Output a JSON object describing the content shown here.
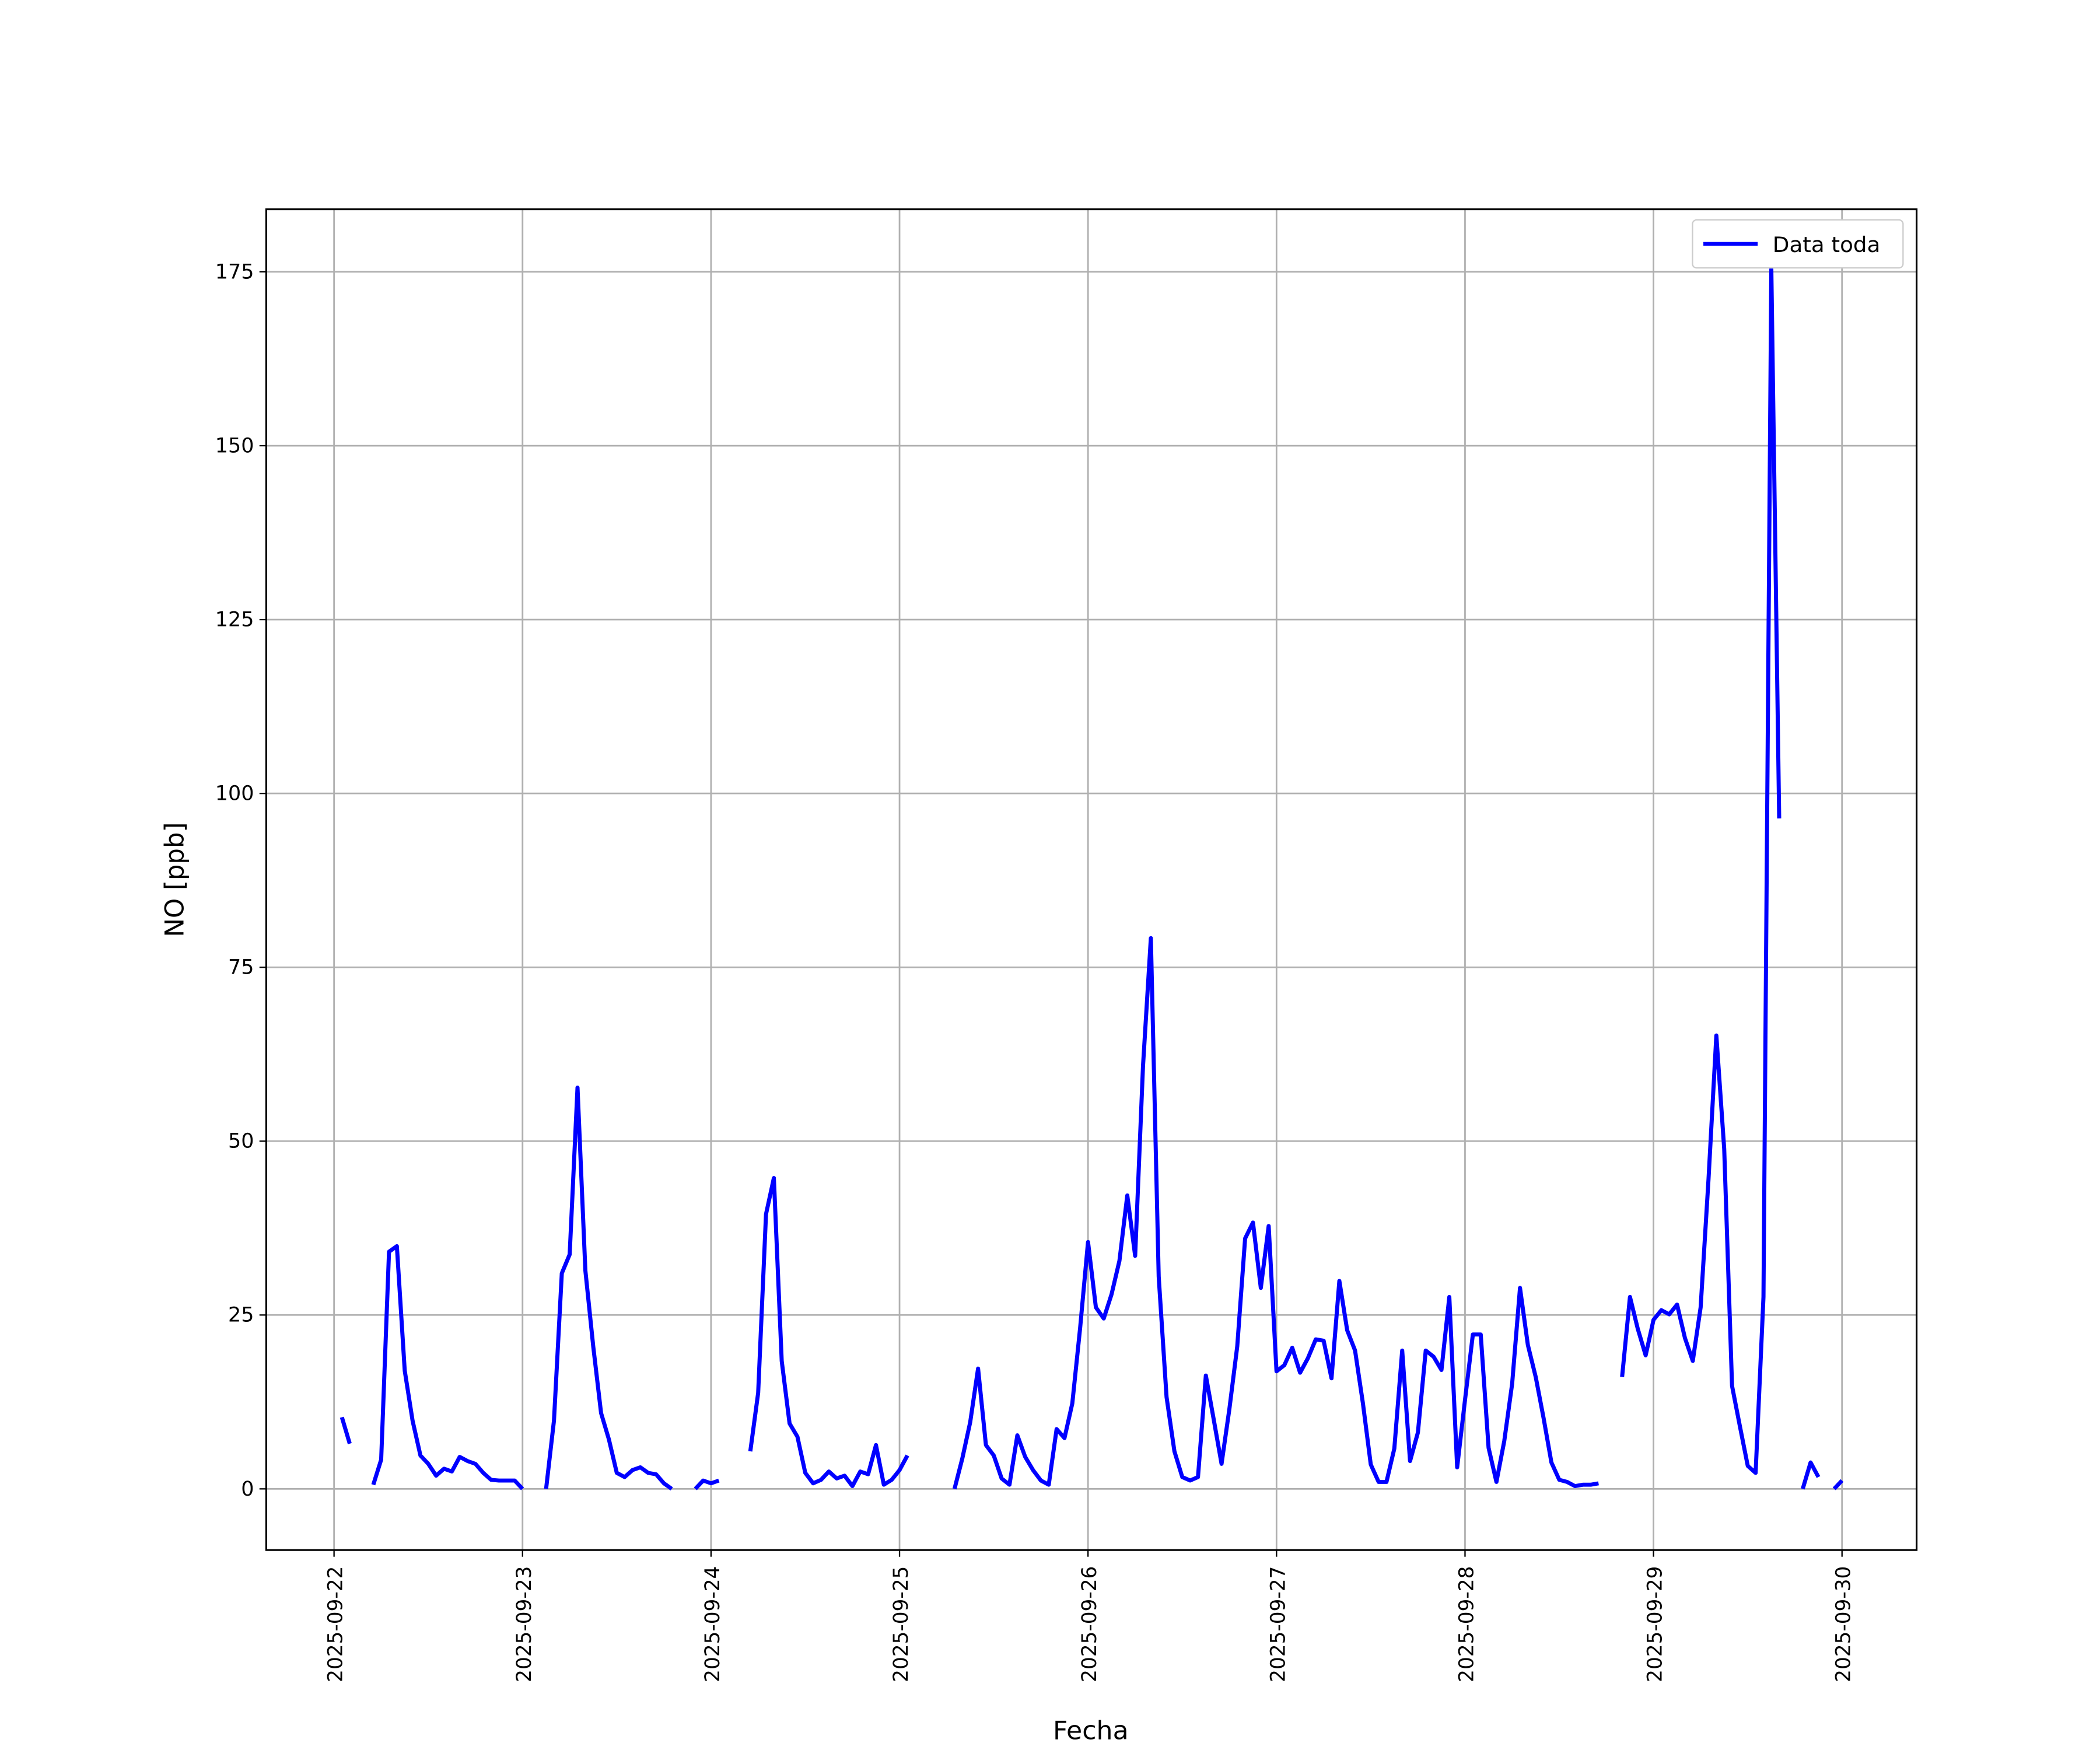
{
  "chart_data": {
    "type": "line",
    "xlabel": "Fecha",
    "ylabel": "NO [ppb]",
    "grid": true,
    "legend": "upper right",
    "xlim": [
      "2025-09-21T15:22",
      "2025-09-30T09:30"
    ],
    "xticks": [
      "2025-09-22",
      "2025-09-23",
      "2025-09-24",
      "2025-09-25",
      "2025-09-26",
      "2025-09-27",
      "2025-09-28",
      "2025-09-29",
      "2025-09-30"
    ],
    "ylim": [
      -8.8,
      184.0
    ],
    "yticks": [
      0,
      25,
      50,
      75,
      100,
      125,
      150,
      175
    ],
    "x": [
      "2025-09-22T01:00",
      "2025-09-22T02:00",
      "2025-09-22T03:00",
      "2025-09-22T04:00",
      "2025-09-22T05:00",
      "2025-09-22T06:00",
      "2025-09-22T07:00",
      "2025-09-22T08:00",
      "2025-09-22T09:00",
      "2025-09-22T10:00",
      "2025-09-22T11:00",
      "2025-09-22T12:00",
      "2025-09-22T13:00",
      "2025-09-22T14:00",
      "2025-09-22T15:00",
      "2025-09-22T16:00",
      "2025-09-22T17:00",
      "2025-09-22T18:00",
      "2025-09-22T19:00",
      "2025-09-22T20:00",
      "2025-09-22T21:00",
      "2025-09-22T22:00",
      "2025-09-22T23:00",
      "2025-09-23T00:00",
      "2025-09-23T01:00",
      "2025-09-23T02:00",
      "2025-09-23T03:00",
      "2025-09-23T04:00",
      "2025-09-23T05:00",
      "2025-09-23T06:00",
      "2025-09-23T07:00",
      "2025-09-23T08:00",
      "2025-09-23T09:00",
      "2025-09-23T10:00",
      "2025-09-23T11:00",
      "2025-09-23T12:00",
      "2025-09-23T13:00",
      "2025-09-23T14:00",
      "2025-09-23T15:00",
      "2025-09-23T16:00",
      "2025-09-23T17:00",
      "2025-09-23T18:00",
      "2025-09-23T19:00",
      "2025-09-23T20:00",
      "2025-09-23T21:00",
      "2025-09-23T22:00",
      "2025-09-23T23:00",
      "2025-09-24T00:00",
      "2025-09-24T01:00",
      "2025-09-24T02:00",
      "2025-09-24T03:00",
      "2025-09-24T04:00",
      "2025-09-24T05:00",
      "2025-09-24T06:00",
      "2025-09-24T07:00",
      "2025-09-24T08:00",
      "2025-09-24T09:00",
      "2025-09-24T10:00",
      "2025-09-24T11:00",
      "2025-09-24T12:00",
      "2025-09-24T13:00",
      "2025-09-24T14:00",
      "2025-09-24T15:00",
      "2025-09-24T16:00",
      "2025-09-24T17:00",
      "2025-09-24T18:00",
      "2025-09-24T19:00",
      "2025-09-24T20:00",
      "2025-09-24T21:00",
      "2025-09-24T22:00",
      "2025-09-24T23:00",
      "2025-09-25T00:00",
      "2025-09-25T01:00",
      "2025-09-25T02:00",
      "2025-09-25T03:00",
      "2025-09-25T04:00",
      "2025-09-25T05:00",
      "2025-09-25T06:00",
      "2025-09-25T07:00",
      "2025-09-25T08:00",
      "2025-09-25T09:00",
      "2025-09-25T10:00",
      "2025-09-25T11:00",
      "2025-09-25T12:00",
      "2025-09-25T13:00",
      "2025-09-25T14:00",
      "2025-09-25T15:00",
      "2025-09-25T16:00",
      "2025-09-25T17:00",
      "2025-09-25T18:00",
      "2025-09-25T19:00",
      "2025-09-25T20:00",
      "2025-09-25T21:00",
      "2025-09-25T22:00",
      "2025-09-25T23:00",
      "2025-09-26T00:00",
      "2025-09-26T01:00",
      "2025-09-26T02:00",
      "2025-09-26T03:00",
      "2025-09-26T04:00",
      "2025-09-26T05:00",
      "2025-09-26T06:00",
      "2025-09-26T07:00",
      "2025-09-26T08:00",
      "2025-09-26T09:00",
      "2025-09-26T10:00",
      "2025-09-26T11:00",
      "2025-09-26T12:00",
      "2025-09-26T13:00",
      "2025-09-26T14:00",
      "2025-09-26T15:00",
      "2025-09-26T16:00",
      "2025-09-26T17:00",
      "2025-09-26T18:00",
      "2025-09-26T19:00",
      "2025-09-26T20:00",
      "2025-09-26T21:00",
      "2025-09-26T22:00",
      "2025-09-26T23:00",
      "2025-09-27T00:00",
      "2025-09-27T01:00",
      "2025-09-27T02:00",
      "2025-09-27T03:00",
      "2025-09-27T04:00",
      "2025-09-27T05:00",
      "2025-09-27T06:00",
      "2025-09-27T07:00",
      "2025-09-27T08:00",
      "2025-09-27T09:00",
      "2025-09-27T10:00",
      "2025-09-27T11:00",
      "2025-09-27T12:00",
      "2025-09-27T13:00",
      "2025-09-27T14:00",
      "2025-09-27T15:00",
      "2025-09-27T16:00",
      "2025-09-27T17:00",
      "2025-09-27T18:00",
      "2025-09-27T19:00",
      "2025-09-27T20:00",
      "2025-09-27T21:00",
      "2025-09-27T22:00",
      "2025-09-27T23:00",
      "2025-09-28T00:00",
      "2025-09-28T01:00",
      "2025-09-28T02:00",
      "2025-09-28T03:00",
      "2025-09-28T04:00",
      "2025-09-28T05:00",
      "2025-09-28T06:00",
      "2025-09-28T07:00",
      "2025-09-28T08:00",
      "2025-09-28T09:00",
      "2025-09-28T10:00",
      "2025-09-28T11:00",
      "2025-09-28T12:00",
      "2025-09-28T13:00",
      "2025-09-28T14:00",
      "2025-09-28T15:00",
      "2025-09-28T16:00",
      "2025-09-28T17:00",
      "2025-09-28T18:00",
      "2025-09-28T19:00",
      "2025-09-28T20:00",
      "2025-09-28T21:00",
      "2025-09-28T22:00",
      "2025-09-28T23:00",
      "2025-09-29T00:00",
      "2025-09-29T01:00",
      "2025-09-29T02:00",
      "2025-09-29T03:00",
      "2025-09-29T04:00",
      "2025-09-29T05:00",
      "2025-09-29T06:00",
      "2025-09-29T07:00",
      "2025-09-29T08:00",
      "2025-09-29T09:00",
      "2025-09-29T10:00",
      "2025-09-29T11:00",
      "2025-09-29T12:00",
      "2025-09-29T13:00",
      "2025-09-29T14:00",
      "2025-09-29T15:00",
      "2025-09-29T16:00",
      "2025-09-29T17:00",
      "2025-09-29T18:00",
      "2025-09-29T19:00",
      "2025-09-29T20:00",
      "2025-09-29T21:00",
      "2025-09-29T22:00",
      "2025-09-29T23:00",
      "2025-09-30T00:00"
    ],
    "series": [
      {
        "name": "Data toda",
        "color": "#0000ff",
        "values": [
          10.3,
          6.5,
          null,
          null,
          0.6,
          4.2,
          34.1,
          34.9,
          17,
          9.8,
          4.8,
          3.6,
          1.9,
          2.9,
          2.5,
          4.6,
          4,
          3.6,
          2.3,
          1.3,
          1.2,
          1.2,
          1.2,
          0,
          null,
          null,
          0,
          9.8,
          31,
          33.7,
          57.7,
          31.4,
          20.5,
          10.9,
          7.1,
          2.3,
          1.7,
          2.7,
          3.1,
          2.3,
          2.1,
          0.8,
          0,
          null,
          null,
          0,
          1.2,
          0.8,
          1.2,
          null,
          null,
          null,
          5.4,
          13.8,
          39.5,
          44.7,
          18.4,
          9.4,
          7.5,
          2.3,
          0.8,
          1.3,
          2.5,
          1.5,
          1.9,
          0.4,
          2.5,
          2.1,
          6.3,
          0.6,
          1.3,
          2.7,
          4.8,
          null,
          null,
          null,
          null,
          null,
          0,
          4.4,
          9.6,
          17.3,
          6.3,
          4.8,
          1.5,
          0.6,
          7.7,
          4.6,
          2.7,
          1.2,
          0.6,
          8.6,
          7.3,
          12.3,
          23.2,
          35.5,
          26.1,
          24.5,
          28,
          32.8,
          42.2,
          33.5,
          60.8,
          79.2,
          30.5,
          13.2,
          5.4,
          1.7,
          1.2,
          1.7,
          16.3,
          10,
          3.6,
          11.5,
          20.5,
          36,
          38.3,
          28.9,
          37.8,
          16.9,
          17.8,
          20.3,
          16.7,
          18.8,
          21.5,
          21.3,
          15.9,
          29.9,
          22.8,
          19.9,
          12.3,
          3.5,
          1,
          1,
          5.8,
          19.9,
          4,
          8.1,
          19.9,
          19,
          17.1,
          27.6,
          3.1,
          12.8,
          22.2,
          22.2,
          5.9,
          1,
          6.9,
          15.1,
          28.9,
          20.7,
          16.1,
          10.2,
          3.8,
          1.3,
          1,
          0.4,
          0.6,
          0.6,
          0.8,
          null,
          null,
          16.1,
          27.6,
          23,
          19.2,
          24.3,
          25.7,
          25.1,
          26.5,
          21.7,
          18.4,
          26.1,
          44.5,
          65.2,
          48.9,
          14.8,
          9,
          3.3,
          2.3,
          27.6,
          175.4,
          96.4,
          null,
          null,
          0,
          3.8,
          1.7,
          null,
          0,
          1.2
        ]
      }
    ]
  }
}
